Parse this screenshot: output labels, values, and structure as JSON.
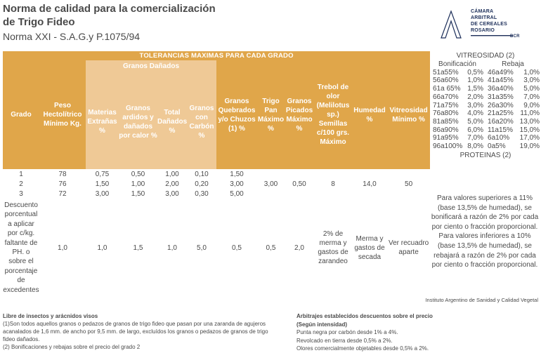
{
  "header": {
    "title_line1": "Norma de calidad para la comercialización",
    "title_line2": "de Trigo Fideo",
    "subtitle": "Norma XXI - S.A.G.y P.1075/94"
  },
  "logo": {
    "line1": "CÁMARA",
    "line2": "ARBITRAL",
    "line3": "DE CEREALES",
    "line4": "ROSARIO",
    "line5": "BCR"
  },
  "table": {
    "banner": "TOLERANCIAS MAXIMAS PARA CADA GRADO",
    "group_header": "Granos Dañados",
    "columns": {
      "grado": "Grado",
      "peso": "Peso Hectolítrico Mínimo Kg.",
      "materias": "Materias Extrañas %",
      "ardidos": "Granos ardidos y dañados por calor %",
      "total": "Total Dañados %",
      "carbon": "Granos con Carbón %",
      "quebrados": "Granos Quebrados y/o Chuzos (1) %",
      "trigo": "Trigo Pan Máximo %",
      "picados": "Granos Picados Máximo %",
      "trebol": "Trebol de olor (Melilotus sp.) Semillas c/100 grs. Máximo",
      "humedad": "Humedad %",
      "vitreosidad": "Vitreosidad Mínimo %"
    },
    "rows": [
      {
        "grado": "1",
        "peso": "78",
        "materias": "0,75",
        "ardidos": "0,50",
        "total": "1,00",
        "carbon": "0,10",
        "quebrados": "1,50",
        "trigo": "",
        "picados": "",
        "trebol": "",
        "humedad": "",
        "vitreosidad": ""
      },
      {
        "grado": "2",
        "peso": "76",
        "materias": "1,50",
        "ardidos": "1,00",
        "total": "2,00",
        "carbon": "0,20",
        "quebrados": "3,00",
        "trigo": "3,00",
        "picados": "0,50",
        "trebol": "8",
        "humedad": "14,0",
        "vitreosidad": "50"
      },
      {
        "grado": "3",
        "peso": "72",
        "materias": "3,00",
        "ardidos": "1,50",
        "total": "3,00",
        "carbon": "0,30",
        "quebrados": "5,00",
        "trigo": "",
        "picados": "",
        "trebol": "",
        "humedad": "",
        "vitreosidad": ""
      }
    ],
    "descuento": {
      "label": "Descuento porcentual a aplicar por c/kg. faltante de PH. o sobre el porcentaje de excedentes",
      "peso": "1,0",
      "materias": "1,0",
      "ardidos": "1,5",
      "total": "1,0",
      "carbon": "5,0",
      "quebrados": "0,5",
      "trigo": "0,5",
      "picados": "2,0",
      "trebol": "2% de merma y gastos de zarandeo",
      "humedad": "Merma y gastos de secada",
      "vitreosidad": "Ver recuadro aparte"
    }
  },
  "vitreosidad": {
    "title": "VITREOSIDAD (2)",
    "col_bonif": "Bonificación",
    "col_rebaja": "Rebaja",
    "rows": [
      [
        "51a55%",
        "0,5%",
        "46a49%",
        "1,0%"
      ],
      [
        "56a60%",
        "1,0%",
        "41a45%",
        "3,0%"
      ],
      [
        "61a 65%",
        "1,5%",
        "36a40%",
        "5,0%"
      ],
      [
        "66a70%",
        "2,0%",
        "31a35%",
        "7,0%"
      ],
      [
        "71a75%",
        "3,0%",
        "26a30%",
        "9,0%"
      ],
      [
        "76a80%",
        "4,0%",
        "21a25%",
        "11,0%"
      ],
      [
        "81a85%",
        "5,0%",
        "16a20%",
        "13,0%"
      ],
      [
        "86a90%",
        "6,0%",
        "11a15%",
        "15,0%"
      ],
      [
        "91a95%",
        "7,0%",
        "6a10%",
        "17,0%"
      ],
      [
        "96a100%",
        "8,0%",
        "0a5%",
        "19,0%"
      ]
    ],
    "proteinas_title": "PROTEINAS (2)",
    "proteinas_text": "Para valores superiores a 11% (base 13,5% de humedad), se bonificará a razón de 2% por cada por ciento o fracción proporcional. Para valores inferiores a 10% (base 13,5% de humedad), se rebajará a razón de 2% por cada por ciento o fracción proporcional."
  },
  "source": "Instituto Argentino de Sanidad y Calidad Vegetal",
  "footer_left": {
    "heading": "Libre de insectos y arácnidos visos",
    "note1": "(1)Son todos aquellos granos o pedazos de granos de trigo fideo que pasan por una zaranda de agujeros acanalados de 1,6 mm. de ancho por 9,5 mm. de largo, excluídos los granos o pedazos de granos de trigo fideo dañados.",
    "note2": "(2) Bonificaciones y rebajas sobre el precio del grado 2"
  },
  "footer_right": {
    "heading1": "Arbitrajes establecidos descuentos sobre el precio",
    "heading2": "(Según intensidad)",
    "line1": "Punta negra por carbón desde 1% a 4%.",
    "line2": "Revolcado en tierra desde 0,5% a 2%.",
    "line3": "Olores comercialmente objetables desde 0,5% a 2%."
  },
  "colors": {
    "header_orange": "#e0a64a",
    "header_light": "#efc996",
    "logo_navy": "#1d2f5a"
  }
}
